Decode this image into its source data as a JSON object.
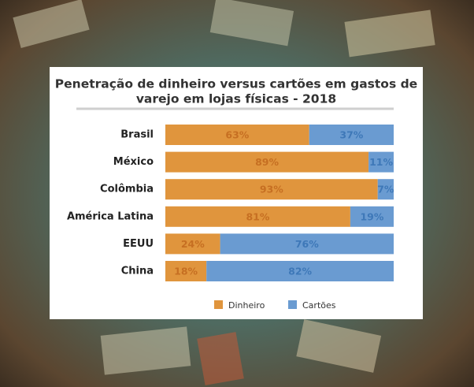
{
  "chart_data": {
    "type": "stacked-bar-h",
    "title": [
      "Penetração de dinheiro versus cartões em gastos de",
      "varejo em lojas físicas - 2018"
    ],
    "categories": [
      "Brasil",
      "México",
      "Colômbia",
      "América Latina",
      "EEUU",
      "China"
    ],
    "series": [
      {
        "name": "Dinheiro",
        "color": "#e0953d",
        "label_color": "#c66f22",
        "values": [
          63,
          89,
          93,
          81,
          24,
          18
        ],
        "value_labels": [
          "63%",
          "89%",
          "93%",
          "81%",
          "24%",
          "18%"
        ]
      },
      {
        "name": "Cartões",
        "color": "#6a9bd1",
        "label_color": "#3e78b8",
        "values": [
          37,
          11,
          7,
          19,
          76,
          82
        ],
        "value_labels": [
          "37%",
          "11%",
          "7%",
          "19%",
          "76%",
          "82%"
        ]
      }
    ],
    "legend": "bottom"
  }
}
